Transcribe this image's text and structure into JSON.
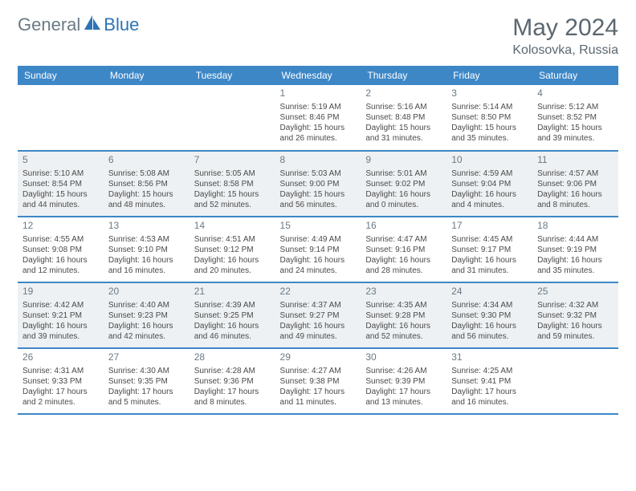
{
  "brand": {
    "part1": "General",
    "part2": "Blue"
  },
  "title": "May 2024",
  "location": "Kolosovka, Russia",
  "colors": {
    "header_bg": "#3d87c7",
    "header_text": "#ffffff",
    "row_border": "#3d87c7",
    "alt_row_bg": "#eef1f3",
    "body_text": "#4a4a4a",
    "muted_text": "#6a7a85",
    "accent": "#2d74b5",
    "page_bg": "#ffffff"
  },
  "day_headers": [
    "Sunday",
    "Monday",
    "Tuesday",
    "Wednesday",
    "Thursday",
    "Friday",
    "Saturday"
  ],
  "weeks": [
    [
      null,
      null,
      null,
      {
        "n": "1",
        "sr": "5:19 AM",
        "ss": "8:46 PM",
        "dl": "15 hours and 26 minutes."
      },
      {
        "n": "2",
        "sr": "5:16 AM",
        "ss": "8:48 PM",
        "dl": "15 hours and 31 minutes."
      },
      {
        "n": "3",
        "sr": "5:14 AM",
        "ss": "8:50 PM",
        "dl": "15 hours and 35 minutes."
      },
      {
        "n": "4",
        "sr": "5:12 AM",
        "ss": "8:52 PM",
        "dl": "15 hours and 39 minutes."
      }
    ],
    [
      {
        "n": "5",
        "sr": "5:10 AM",
        "ss": "8:54 PM",
        "dl": "15 hours and 44 minutes."
      },
      {
        "n": "6",
        "sr": "5:08 AM",
        "ss": "8:56 PM",
        "dl": "15 hours and 48 minutes."
      },
      {
        "n": "7",
        "sr": "5:05 AM",
        "ss": "8:58 PM",
        "dl": "15 hours and 52 minutes."
      },
      {
        "n": "8",
        "sr": "5:03 AM",
        "ss": "9:00 PM",
        "dl": "15 hours and 56 minutes."
      },
      {
        "n": "9",
        "sr": "5:01 AM",
        "ss": "9:02 PM",
        "dl": "16 hours and 0 minutes."
      },
      {
        "n": "10",
        "sr": "4:59 AM",
        "ss": "9:04 PM",
        "dl": "16 hours and 4 minutes."
      },
      {
        "n": "11",
        "sr": "4:57 AM",
        "ss": "9:06 PM",
        "dl": "16 hours and 8 minutes."
      }
    ],
    [
      {
        "n": "12",
        "sr": "4:55 AM",
        "ss": "9:08 PM",
        "dl": "16 hours and 12 minutes."
      },
      {
        "n": "13",
        "sr": "4:53 AM",
        "ss": "9:10 PM",
        "dl": "16 hours and 16 minutes."
      },
      {
        "n": "14",
        "sr": "4:51 AM",
        "ss": "9:12 PM",
        "dl": "16 hours and 20 minutes."
      },
      {
        "n": "15",
        "sr": "4:49 AM",
        "ss": "9:14 PM",
        "dl": "16 hours and 24 minutes."
      },
      {
        "n": "16",
        "sr": "4:47 AM",
        "ss": "9:16 PM",
        "dl": "16 hours and 28 minutes."
      },
      {
        "n": "17",
        "sr": "4:45 AM",
        "ss": "9:17 PM",
        "dl": "16 hours and 31 minutes."
      },
      {
        "n": "18",
        "sr": "4:44 AM",
        "ss": "9:19 PM",
        "dl": "16 hours and 35 minutes."
      }
    ],
    [
      {
        "n": "19",
        "sr": "4:42 AM",
        "ss": "9:21 PM",
        "dl": "16 hours and 39 minutes."
      },
      {
        "n": "20",
        "sr": "4:40 AM",
        "ss": "9:23 PM",
        "dl": "16 hours and 42 minutes."
      },
      {
        "n": "21",
        "sr": "4:39 AM",
        "ss": "9:25 PM",
        "dl": "16 hours and 46 minutes."
      },
      {
        "n": "22",
        "sr": "4:37 AM",
        "ss": "9:27 PM",
        "dl": "16 hours and 49 minutes."
      },
      {
        "n": "23",
        "sr": "4:35 AM",
        "ss": "9:28 PM",
        "dl": "16 hours and 52 minutes."
      },
      {
        "n": "24",
        "sr": "4:34 AM",
        "ss": "9:30 PM",
        "dl": "16 hours and 56 minutes."
      },
      {
        "n": "25",
        "sr": "4:32 AM",
        "ss": "9:32 PM",
        "dl": "16 hours and 59 minutes."
      }
    ],
    [
      {
        "n": "26",
        "sr": "4:31 AM",
        "ss": "9:33 PM",
        "dl": "17 hours and 2 minutes."
      },
      {
        "n": "27",
        "sr": "4:30 AM",
        "ss": "9:35 PM",
        "dl": "17 hours and 5 minutes."
      },
      {
        "n": "28",
        "sr": "4:28 AM",
        "ss": "9:36 PM",
        "dl": "17 hours and 8 minutes."
      },
      {
        "n": "29",
        "sr": "4:27 AM",
        "ss": "9:38 PM",
        "dl": "17 hours and 11 minutes."
      },
      {
        "n": "30",
        "sr": "4:26 AM",
        "ss": "9:39 PM",
        "dl": "17 hours and 13 minutes."
      },
      {
        "n": "31",
        "sr": "4:25 AM",
        "ss": "9:41 PM",
        "dl": "17 hours and 16 minutes."
      },
      null
    ]
  ],
  "labels": {
    "sunrise_prefix": "Sunrise: ",
    "sunset_prefix": "Sunset: ",
    "daylight_prefix": "Daylight: "
  }
}
